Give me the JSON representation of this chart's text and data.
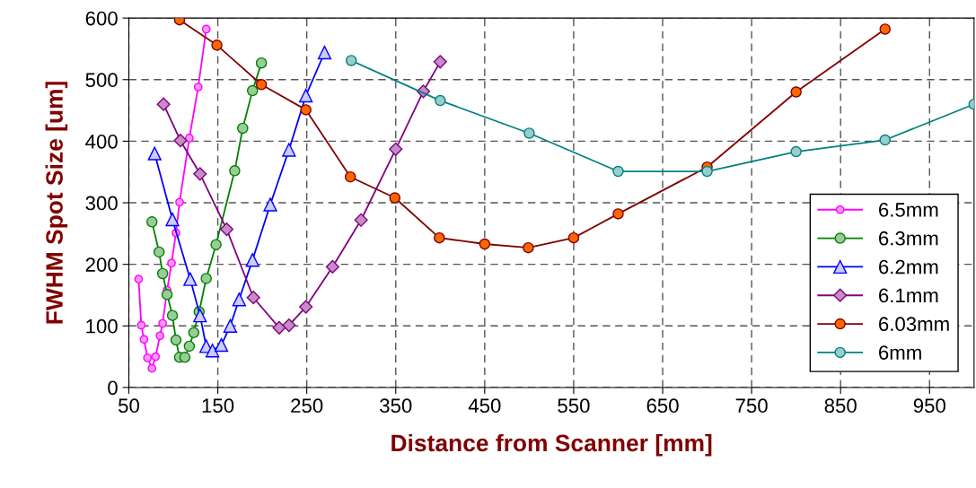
{
  "chart_data": {
    "type": "line",
    "xlabel": "Distance from Scanner [mm]",
    "ylabel": "FWHM Spot Size [um]",
    "xlim": [
      50,
      1000
    ],
    "xticks": [
      50,
      150,
      250,
      350,
      450,
      550,
      650,
      750,
      850,
      950
    ],
    "ylim": [
      0,
      600
    ],
    "yticks": [
      0,
      100,
      200,
      300,
      400,
      500,
      600
    ],
    "grid": true,
    "legend": "bottom right",
    "line_style": "solid",
    "series": [
      {
        "name": "6.5mm",
        "color": "#ff00ff",
        "marker": "circle",
        "x": [
          61,
          64,
          67,
          71,
          76,
          80,
          85,
          88,
          93,
          98,
          103,
          107,
          118,
          128,
          137
        ],
        "values": [
          176,
          101,
          78,
          48,
          31,
          50,
          84,
          104,
          158,
          202,
          251,
          301,
          405,
          488,
          582
        ]
      },
      {
        "name": "6.3mm",
        "color": "#008000",
        "marker": "circle",
        "x": [
          76,
          84,
          88,
          93,
          99,
          103,
          107,
          113,
          118,
          123,
          129,
          137,
          148,
          169,
          178,
          189,
          199
        ],
        "values": [
          269,
          220,
          185,
          151,
          117,
          77,
          49,
          49,
          67,
          89,
          123,
          177,
          232,
          352,
          421,
          482,
          527
        ]
      },
      {
        "name": "6.2mm",
        "color": "#0000ff",
        "marker": "triangle",
        "x": [
          79,
          99,
          119,
          130,
          137,
          144,
          154,
          164,
          174,
          189,
          209,
          230,
          249,
          270
        ],
        "values": [
          380,
          273,
          176,
          117,
          67,
          60,
          69,
          100,
          143,
          207,
          297,
          386,
          474,
          544
        ]
      },
      {
        "name": "6.1mm",
        "color": "#800080",
        "marker": "diamond",
        "x": [
          89,
          108,
          130,
          160,
          190,
          219,
          230,
          249,
          279,
          311,
          350,
          381,
          400
        ],
        "values": [
          460,
          401,
          347,
          257,
          146,
          97,
          101,
          131,
          196,
          272,
          387,
          481,
          529
        ]
      },
      {
        "name": "6.03mm",
        "color": "#800000",
        "marker": "circle",
        "x": [
          107,
          149,
          199,
          249,
          299,
          349,
          399,
          450,
          499,
          550,
          600,
          700,
          800,
          900
        ],
        "values": [
          597,
          556,
          492,
          451,
          342,
          308,
          243,
          233,
          227,
          243,
          282,
          358,
          480,
          582
        ]
      },
      {
        "name": "6mm",
        "color": "#008080",
        "marker": "circle",
        "x": [
          300,
          400,
          500,
          600,
          700,
          800,
          900,
          1000
        ],
        "values": [
          531,
          466,
          413,
          351,
          351,
          383,
          402,
          460
        ]
      }
    ]
  }
}
